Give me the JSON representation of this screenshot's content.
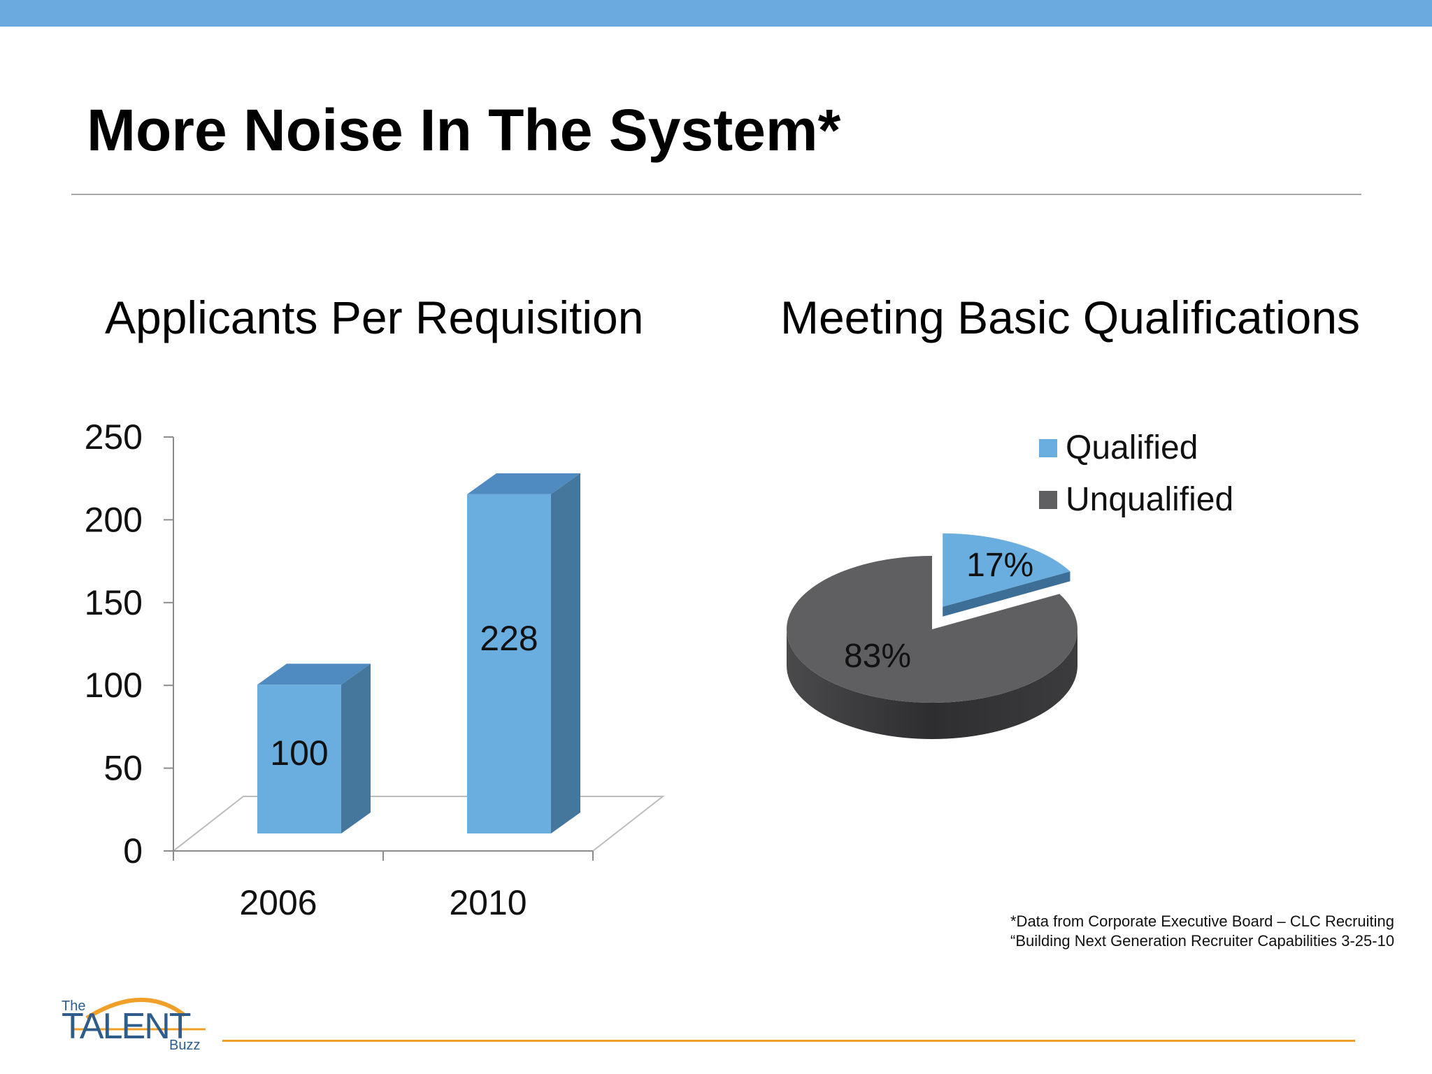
{
  "slide": {
    "title": "More Noise In The System*",
    "footnote_line1": "*Data from Corporate Executive Board – CLC Recruiting",
    "footnote_line2": "“Building Next Generation Recruiter Capabilities 3-25-10",
    "logo_the": "The",
    "logo_main": "TALENT",
    "logo_buzz": "Buzz"
  },
  "colors": {
    "top_bar": "#6aaadf",
    "bar_front": "#6aaee0",
    "bar_top": "#4f8bc0",
    "bar_side": "#45769c",
    "pie_qualified": "#6aaee0",
    "pie_unqualified": "#5f5f62",
    "accent_orange": "#f0a028"
  },
  "chart_data": [
    {
      "type": "bar",
      "title": "Applicants Per Requisition",
      "categories": [
        "2006",
        "2010"
      ],
      "values": [
        100,
        228
      ],
      "data_labels": [
        "100",
        "228"
      ],
      "ylim": [
        0,
        250
      ],
      "yticks": [
        0,
        50,
        100,
        150,
        200,
        250
      ],
      "xlabel": "",
      "ylabel": "",
      "legend": false
    },
    {
      "type": "pie",
      "title": "Meeting Basic Qualifications",
      "labels": [
        "Qualified",
        "Unqualified"
      ],
      "values": [
        17,
        83
      ],
      "data_labels": [
        "17%",
        "83%"
      ],
      "legend": "top-right"
    }
  ]
}
